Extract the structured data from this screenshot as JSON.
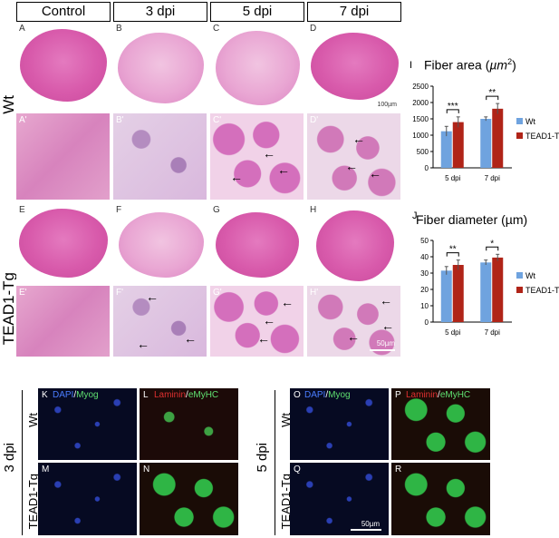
{
  "columns": [
    "Control",
    "3 dpi",
    "5 dpi",
    "7 dpi"
  ],
  "rows": [
    "Wt",
    "TEAD1-Tg"
  ],
  "panel_letters": {
    "top": [
      "A",
      "B",
      "C",
      "D"
    ],
    "top_zoom": [
      "A'",
      "B'",
      "C'",
      "D'"
    ],
    "mid": [
      "E",
      "F",
      "G",
      "H"
    ],
    "mid_zoom": [
      "E'",
      "F'",
      "G'",
      "H'"
    ]
  },
  "scale_bars": {
    "whole": "100µm",
    "zoom": "50µm",
    "fluo": "50µm"
  },
  "charts": {
    "fiber_area": {
      "letter": "I",
      "title": "Fiber area (µm²)",
      "title_main": "Fiber area (",
      "title_unit": "µm",
      "title_sup": "2",
      "title_close": ")"
    },
    "fiber_diameter": {
      "letter": "J",
      "title": "Fiber diameter (µm)"
    }
  },
  "fluo": {
    "left_row_label": "3 dpi",
    "right_row_label": "5 dpi",
    "row_names": [
      "Wt",
      "TEAD1-Tg"
    ],
    "panels": [
      {
        "letter": "K",
        "stain_a": "DAPI",
        "sep": "/",
        "stain_b": "Myog"
      },
      {
        "letter": "L",
        "stain_a": "Laminin",
        "sep": "/",
        "stain_b": "eMyHC"
      },
      {
        "letter": "M",
        "stain_a": "",
        "sep": "",
        "stain_b": ""
      },
      {
        "letter": "N",
        "stain_a": "",
        "sep": "",
        "stain_b": ""
      },
      {
        "letter": "O",
        "stain_a": "DAPI",
        "sep": "/",
        "stain_b": "Myog"
      },
      {
        "letter": "P",
        "stain_a": "Laminin",
        "sep": "/",
        "stain_b": "eMyHC"
      },
      {
        "letter": "Q",
        "stain_a": "",
        "sep": "",
        "stain_b": ""
      },
      {
        "letter": "R",
        "stain_a": "",
        "sep": "",
        "stain_b": ""
      }
    ]
  },
  "colors": {
    "wt": "#6fa3df",
    "tg": "#b02418",
    "dapi": "#4a7dff",
    "myog": "#5fe070",
    "laminin": "#e03030",
    "emyhc": "#5fe070"
  },
  "chart_data": [
    {
      "type": "bar",
      "title": "Fiber area (µm²)",
      "categories": [
        "5 dpi",
        "7 dpi"
      ],
      "series": [
        {
          "name": "Wt",
          "values": [
            1120,
            1500
          ],
          "errors": [
            150,
            60
          ]
        },
        {
          "name": "TEAD1-Tg",
          "values": [
            1400,
            1810
          ],
          "errors": [
            160,
            160
          ]
        }
      ],
      "ylim": [
        0,
        2500
      ],
      "yticks": [
        "0",
        "500",
        "1000",
        "1500",
        "2000",
        "2500"
      ],
      "significance": [
        "***",
        "**"
      ],
      "legend": "right"
    },
    {
      "type": "bar",
      "title": "Fiber diameter (µm)",
      "categories": [
        "5 dpi",
        "7 dpi"
      ],
      "series": [
        {
          "name": "Wt",
          "values": [
            31.5,
            36.5
          ],
          "errors": [
            2.5,
            1.5
          ]
        },
        {
          "name": "TEAD1-Tg",
          "values": [
            35,
            39.5
          ],
          "errors": [
            3,
            2
          ]
        }
      ],
      "ylim": [
        0,
        50
      ],
      "yticks": [
        "0",
        "10",
        "20",
        "30",
        "40",
        "50"
      ],
      "significance": [
        "**",
        "*"
      ],
      "legend": "right"
    }
  ]
}
